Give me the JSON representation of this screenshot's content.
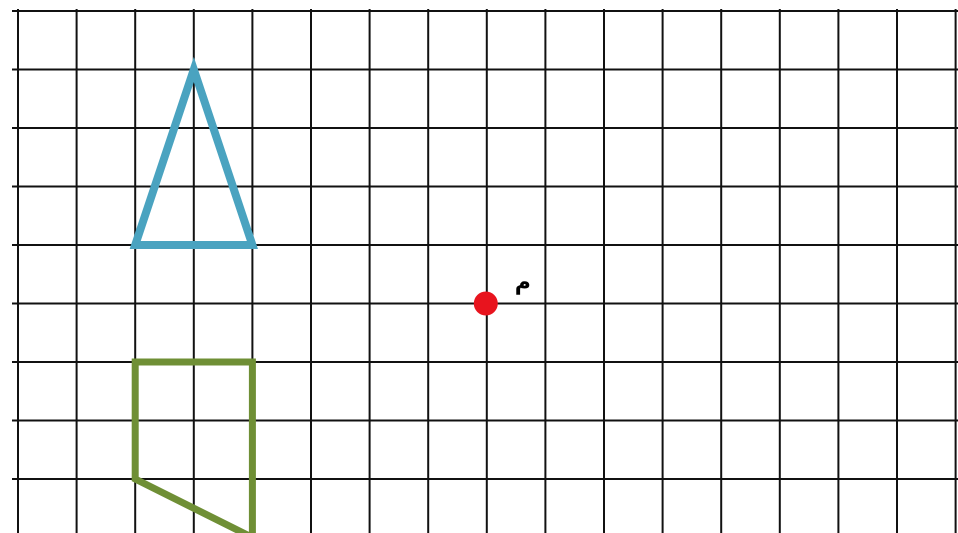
{
  "grid": {
    "columns": 16,
    "rows": 9,
    "line_color": "#111111"
  },
  "center_point": {
    "label": "م",
    "color": "#e8141e",
    "cell_x": 8,
    "cell_y": 5
  },
  "triangle": {
    "color": "#4aa3c0",
    "vertices_cells": [
      [
        3,
        1
      ],
      [
        2,
        4
      ],
      [
        4,
        4
      ]
    ]
  },
  "quadrilateral": {
    "color": "#6f8f35",
    "vertices_cells": [
      [
        2,
        6
      ],
      [
        4,
        6
      ],
      [
        4,
        9
      ],
      [
        2,
        8
      ]
    ]
  }
}
